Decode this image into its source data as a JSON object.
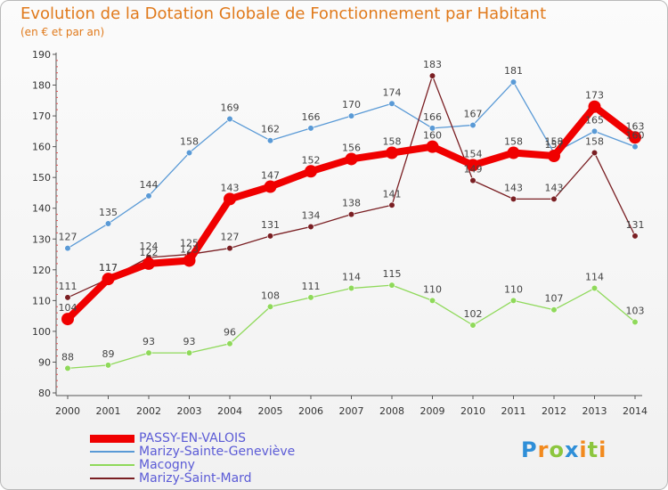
{
  "chart_data": {
    "type": "line",
    "title": "Evolution de la Dotation Globale de Fonctionnement par Habitant",
    "subtitle": "(en € et par an)",
    "xlabel": "",
    "ylabel": "",
    "ylim": [
      80,
      190
    ],
    "y_ticks": [
      80,
      90,
      100,
      110,
      120,
      130,
      140,
      150,
      160,
      170,
      180,
      190
    ],
    "categories": [
      "2000",
      "2001",
      "2002",
      "2003",
      "2004",
      "2005",
      "2006",
      "2007",
      "2008",
      "2009",
      "2010",
      "2011",
      "2012",
      "2013",
      "2014"
    ],
    "grid": false,
    "series": [
      {
        "name": "PASSY-EN-VALOIS",
        "color": "#f00000",
        "values": [
          104,
          117,
          122,
          123,
          143,
          147,
          152,
          156,
          158,
          160,
          154,
          158,
          157,
          173,
          163
        ]
      },
      {
        "name": "Marizy-Sainte-Geneviève",
        "color": "#5a9ad6",
        "values": [
          127,
          135,
          144,
          158,
          169,
          162,
          166,
          170,
          174,
          166,
          167,
          181,
          158,
          165,
          160
        ]
      },
      {
        "name": "Macogny",
        "color": "#8fd95a",
        "values": [
          88,
          89,
          93,
          93,
          96,
          108,
          111,
          114,
          115,
          110,
          102,
          110,
          107,
          114,
          103
        ]
      },
      {
        "name": "Marizy-Saint-Mard",
        "color": "#7a1f23",
        "values": [
          111,
          117,
          124,
          125,
          127,
          131,
          134,
          138,
          141,
          183,
          149,
          143,
          143,
          158,
          131
        ]
      }
    ]
  },
  "logo": {
    "letters": [
      "P",
      "r",
      "o",
      "x",
      "i",
      "t",
      "i"
    ],
    "colors": [
      "#2f8fd8",
      "#f28a1e",
      "#8cc63e",
      "#2f8fd8",
      "#f28a1e",
      "#8cc63e",
      "#f28a1e"
    ]
  }
}
